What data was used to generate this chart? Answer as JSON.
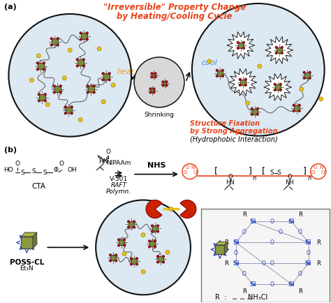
{
  "title_line1": "\"Irreversible\" Property Change",
  "title_line2": "by Heating/Cooling Cycle",
  "title_color": "#e8431a",
  "heat_label": "heat",
  "heat_color": "#e8a020",
  "cool_label": "cool",
  "cool_color": "#4a90d9",
  "shrinking_label": "Shrinking",
  "fixation_line1": "Structure Fixation",
  "fixation_line2": "by Strong Aggregation",
  "fixation_line3": "(Hydrophobic Interaction)",
  "fixation_color": "#e8431a",
  "label_a": "(a)",
  "label_b": "(b)",
  "bg_color": "#ffffff",
  "circle_fill": "#dce8f2",
  "circle_edge": "#111111",
  "poss_color": "#7a8c3a",
  "dot_yellow": "#e8c020",
  "dot_red": "#8B1a1a",
  "polymer_color": "#e8431a",
  "arrow_color": "#111111",
  "poss_cl_label": "POSS-CL",
  "et3n_label": "Et₃N",
  "nipaama_label": "NIPAAm",
  "v501_label": "V-501",
  "raft_label": "RAFT",
  "polymn_label": "Polymn.",
  "nhs_label": "NHS",
  "cta_label": "CTA",
  "si_color": "#2244bb",
  "box_color": "#f5f5f5",
  "box_edge": "#777777"
}
